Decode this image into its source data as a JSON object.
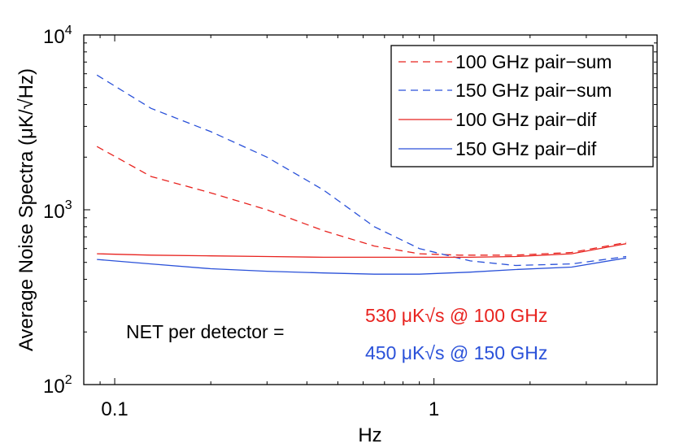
{
  "chart_data": {
    "type": "line",
    "xscale": "log",
    "yscale": "log",
    "xlim": [
      0.08,
      5.0
    ],
    "ylim": [
      100,
      10000
    ],
    "xlabel": "Hz",
    "ylabel": "Average Noise Spectra (μK/√Hz)",
    "x_ticks": [
      {
        "value": 0.1,
        "label": "0.1"
      },
      {
        "value": 1,
        "label": "1"
      }
    ],
    "y_ticks": [
      {
        "value": 100,
        "base": "10",
        "exp": "2"
      },
      {
        "value": 1000,
        "base": "10",
        "exp": "3"
      },
      {
        "value": 10000,
        "base": "10",
        "exp": "4"
      }
    ],
    "legend_position": "top-right",
    "series": [
      {
        "name": "100 GHz pair−sum",
        "color": "#e8231f",
        "style": "dashed",
        "x": [
          0.088,
          0.13,
          0.2,
          0.3,
          0.45,
          0.65,
          0.9,
          1.2,
          1.8,
          2.7,
          4.0
        ],
        "y": [
          2300,
          1550,
          1250,
          1000,
          760,
          620,
          560,
          550,
          550,
          570,
          650
        ]
      },
      {
        "name": "150 GHz pair−sum",
        "color": "#2a51d9",
        "style": "dashed",
        "x": [
          0.088,
          0.13,
          0.2,
          0.3,
          0.45,
          0.65,
          0.9,
          1.05,
          1.3,
          1.8,
          2.7,
          4.0
        ],
        "y": [
          5900,
          3800,
          2800,
          2000,
          1300,
          800,
          600,
          560,
          510,
          480,
          490,
          540
        ]
      },
      {
        "name": "100 GHz pair−dif",
        "color": "#e8231f",
        "style": "solid",
        "x": [
          0.088,
          0.13,
          0.2,
          0.3,
          0.45,
          0.65,
          0.9,
          1.3,
          1.8,
          2.7,
          4.0
        ],
        "y": [
          560,
          550,
          545,
          540,
          535,
          535,
          535,
          535,
          540,
          560,
          640
        ]
      },
      {
        "name": "150 GHz pair−dif",
        "color": "#2a51d9",
        "style": "solid",
        "x": [
          0.088,
          0.13,
          0.2,
          0.3,
          0.45,
          0.65,
          0.9,
          1.3,
          1.8,
          2.7,
          4.0
        ],
        "y": [
          520,
          490,
          460,
          445,
          435,
          428,
          428,
          440,
          455,
          470,
          530
        ]
      }
    ],
    "annotations": {
      "net_label": "NET per detector =",
      "net_100": "530 μK√s @ 100 GHz",
      "net_100_color": "#e8231f",
      "net_150": "450 μK√s @ 150 GHz",
      "net_150_color": "#2a51d9"
    }
  }
}
